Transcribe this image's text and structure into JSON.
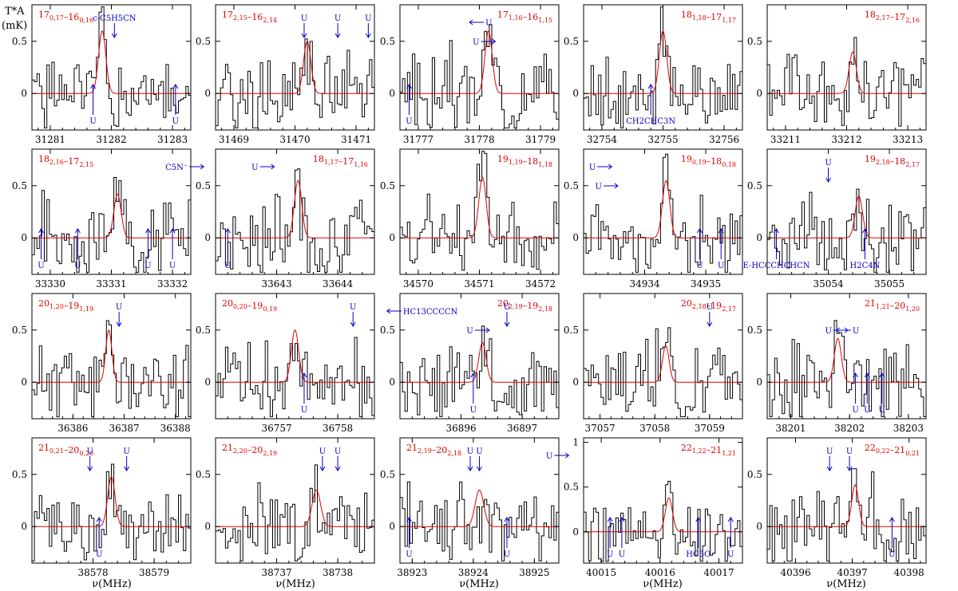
{
  "axis": {
    "xlabel": "ν(MHz)",
    "ylabel_top": "T*A",
    "ylabel_unit": "(mK)"
  },
  "chart_data": [
    {
      "type": "line",
      "title": "17_{0,17}–16_{0,16}",
      "xticks": [
        "31281",
        "31282",
        "31283"
      ],
      "xlim": [
        31280.7,
        31283.3
      ],
      "ylim": [
        -0.35,
        0.85
      ],
      "yticks": [
        0,
        0.5
      ],
      "model": {
        "center": 31281.85,
        "amp": 0.6,
        "width": 0.06
      },
      "noise_seed": 1,
      "annotations": [
        {
          "text": "c-C5H5CN",
          "x": 31282.05,
          "dir": "down",
          "place": "top"
        },
        {
          "text": "U",
          "x": 31281.7,
          "dir": "up",
          "place": "bottom"
        },
        {
          "text": "U",
          "x": 31283.05,
          "dir": "up",
          "place": "bottom"
        }
      ]
    },
    {
      "type": "line",
      "title": "17_{2,15}–16_{2,14}",
      "xticks": [
        "31469",
        "31470",
        "31471"
      ],
      "xlim": [
        31468.7,
        31471.3
      ],
      "ylim": [
        -0.35,
        0.85
      ],
      "yticks": [
        0,
        0.5
      ],
      "model": {
        "center": 31470.2,
        "amp": 0.5,
        "width": 0.06
      },
      "noise_seed": 2,
      "annotations": [
        {
          "text": "U",
          "x": 31470.15,
          "dir": "down",
          "place": "top"
        },
        {
          "text": "U",
          "x": 31470.7,
          "dir": "down",
          "place": "top"
        },
        {
          "text": "U",
          "x": 31471.2,
          "dir": "down",
          "place": "top"
        }
      ]
    },
    {
      "type": "line",
      "title": "17_{1,16}–16_{1,15}",
      "xticks": [
        "31777",
        "31778",
        "31779"
      ],
      "xlim": [
        31776.7,
        31779.3
      ],
      "ylim": [
        -0.35,
        0.85
      ],
      "yticks": [
        0,
        0.5
      ],
      "model": {
        "center": 31778.15,
        "amp": 0.6,
        "width": 0.06
      },
      "noise_seed": 3,
      "annotations": [
        {
          "text": "U",
          "x": 31776.85,
          "dir": "up",
          "place": "bottom"
        },
        {
          "text": "U",
          "x": 31778.1,
          "dir": "left",
          "place": "top"
        },
        {
          "text": "U",
          "x": 31778.0,
          "dir": "right",
          "place": "mid"
        }
      ]
    },
    {
      "type": "line",
      "title": "18_{1,18}–17_{1,17}",
      "xticks": [
        "32754",
        "32755",
        "32756"
      ],
      "xlim": [
        32753.7,
        32756.3
      ],
      "ylim": [
        -0.35,
        0.85
      ],
      "yticks": [
        0,
        0.5
      ],
      "model": {
        "center": 32755.0,
        "amp": 0.6,
        "width": 0.06
      },
      "noise_seed": 4,
      "annotations": [
        {
          "text": "CH2CHC3N",
          "x": 32754.8,
          "dir": "up",
          "place": "bottom"
        }
      ]
    },
    {
      "type": "line",
      "title": "18_{2,17}–17_{2,16}",
      "xticks": [
        "33211",
        "33212",
        "33213"
      ],
      "xlim": [
        33210.7,
        33213.3
      ],
      "ylim": [
        -0.35,
        0.85
      ],
      "yticks": [
        0,
        0.5
      ],
      "model": {
        "center": 33212.1,
        "amp": 0.4,
        "width": 0.06
      },
      "noise_seed": 5,
      "annotations": []
    },
    {
      "type": "line",
      "title": "18_{2,16}–17_{2,15}",
      "xticks": [
        "33330",
        "33331",
        "33332"
      ],
      "xlim": [
        33329.7,
        33332.3
      ],
      "ylim": [
        -0.35,
        0.85
      ],
      "yticks": [
        0,
        0.5
      ],
      "model": {
        "center": 33331.1,
        "amp": 0.42,
        "width": 0.06
      },
      "noise_seed": 6,
      "annotations": [
        {
          "text": "C5N⁻",
          "x": 33332.25,
          "dir": "right",
          "place": "top"
        },
        {
          "text": "U",
          "x": 33329.85,
          "dir": "up",
          "place": "bottom"
        },
        {
          "text": "U",
          "x": 33330.45,
          "dir": "up",
          "place": "bottom"
        },
        {
          "text": "U",
          "x": 33331.6,
          "dir": "up",
          "place": "bottom"
        },
        {
          "text": "U",
          "x": 33332.0,
          "dir": "up",
          "place": "bottom"
        }
      ]
    },
    {
      "type": "line",
      "title": "18_{1,17}–17_{1,16}",
      "xticks": [
        "",
        "33643",
        "33644"
      ],
      "xlim": [
        33642.0,
        33644.6
      ],
      "ylim": [
        -0.35,
        0.85
      ],
      "yticks": [
        0,
        0.5
      ],
      "model": {
        "center": 33643.35,
        "amp": 0.55,
        "width": 0.06
      },
      "noise_seed": 7,
      "annotations": [
        {
          "text": "U",
          "x": 33642.2,
          "dir": "up",
          "place": "bottom"
        },
        {
          "text": "U",
          "x": 33642.7,
          "dir": "right",
          "place": "top"
        }
      ]
    },
    {
      "type": "line",
      "title": "19_{1,19}–18_{1,18}",
      "xticks": [
        "34570",
        "34571",
        "34572"
      ],
      "xlim": [
        34569.7,
        34572.3
      ],
      "ylim": [
        -0.35,
        0.85
      ],
      "yticks": [
        0,
        0.5
      ],
      "model": {
        "center": 34571.05,
        "amp": 0.58,
        "width": 0.06
      },
      "noise_seed": 8,
      "annotations": []
    },
    {
      "type": "line",
      "title": "19_{0,19}–18_{0,18}",
      "xticks": [
        "",
        "34934",
        "34935"
      ],
      "xlim": [
        34933.0,
        34935.6
      ],
      "ylim": [
        -0.35,
        0.85
      ],
      "yticks": [
        0,
        0.5
      ],
      "model": {
        "center": 34934.35,
        "amp": 0.55,
        "width": 0.06
      },
      "noise_seed": 9,
      "annotations": [
        {
          "text": "U",
          "x": 34933.2,
          "dir": "right",
          "place": "top"
        },
        {
          "text": "U",
          "x": 34933.3,
          "dir": "right",
          "place": "mid"
        },
        {
          "text": "U",
          "x": 34934.9,
          "dir": "up",
          "place": "bottom"
        },
        {
          "text": "U",
          "x": 34935.25,
          "dir": "up",
          "place": "bottom"
        }
      ]
    },
    {
      "type": "line",
      "title": "19_{2,18}–18_{2,17}",
      "xticks": [
        "",
        "35054",
        "35055"
      ],
      "xlim": [
        35053.0,
        35055.6
      ],
      "ylim": [
        -0.35,
        0.85
      ],
      "yticks": [
        0,
        0.5
      ],
      "model": {
        "center": 35054.5,
        "amp": 0.4,
        "width": 0.06
      },
      "noise_seed": 10,
      "annotations": [
        {
          "text": "E-HCCCHCHCN",
          "x": 35053.15,
          "dir": "up",
          "place": "bottom"
        },
        {
          "text": "U",
          "x": 35054.0,
          "dir": "down",
          "place": "top"
        },
        {
          "text": "H2C4N",
          "x": 35054.6,
          "dir": "up",
          "place": "bottom"
        }
      ]
    },
    {
      "type": "line",
      "title": "20_{1,20}–19_{1,19}",
      "xticks": [
        "36386",
        "36387",
        "36388"
      ],
      "xlim": [
        36385.2,
        36388.3
      ],
      "ylim": [
        -0.35,
        0.85
      ],
      "yticks": [
        0,
        0.5
      ],
      "model": {
        "center": 36386.7,
        "amp": 0.5,
        "width": 0.06
      },
      "noise_seed": 11,
      "annotations": [
        {
          "text": "U",
          "x": 36386.9,
          "dir": "down",
          "place": "top"
        }
      ]
    },
    {
      "type": "line",
      "title": "20_{0,20}–19_{0,19}",
      "xticks": [
        "",
        "36757",
        "36758"
      ],
      "xlim": [
        36756.0,
        36758.6
      ],
      "ylim": [
        -0.35,
        0.85
      ],
      "yticks": [
        0,
        0.5
      ],
      "model": {
        "center": 36757.3,
        "amp": 0.5,
        "width": 0.06
      },
      "noise_seed": 12,
      "annotations": [
        {
          "text": "U",
          "x": 36757.45,
          "dir": "up",
          "place": "bottom"
        },
        {
          "text": "U",
          "x": 36758.25,
          "dir": "down",
          "place": "top"
        }
      ]
    },
    {
      "type": "line",
      "title": "20_{2,19}–19_{2,18}",
      "xticks": [
        "",
        "36896",
        "36897"
      ],
      "xlim": [
        36895.0,
        36897.6
      ],
      "ylim": [
        -0.35,
        0.85
      ],
      "yticks": [
        0,
        0.5
      ],
      "model": {
        "center": 36896.35,
        "amp": 0.38,
        "width": 0.06
      },
      "noise_seed": 13,
      "annotations": [
        {
          "text": "HC13CCCCN",
          "x": 36895.05,
          "dir": "left",
          "place": "top"
        },
        {
          "text": "U",
          "x": 36896.2,
          "dir": "right",
          "place": "mid"
        },
        {
          "text": "U",
          "x": 36896.2,
          "dir": "up",
          "place": "bottom"
        },
        {
          "text": "U",
          "x": 36896.75,
          "dir": "down",
          "place": "top"
        }
      ]
    },
    {
      "type": "line",
      "title": "20_{2,18}–19_{2,17}",
      "xticks": [
        "37057",
        "37058",
        "37059"
      ],
      "xlim": [
        37056.7,
        37059.6
      ],
      "ylim": [
        -0.35,
        0.85
      ],
      "yticks": [
        0,
        0.5
      ],
      "model": {
        "center": 37058.2,
        "amp": 0.35,
        "width": 0.06
      },
      "noise_seed": 14,
      "annotations": [
        {
          "text": "U",
          "x": 37059.0,
          "dir": "down",
          "place": "top"
        }
      ]
    },
    {
      "type": "line",
      "title": "21_{1,21}–20_{1,20}",
      "xticks": [
        "38201",
        "38202",
        "38203"
      ],
      "xlim": [
        38200.6,
        38203.3
      ],
      "ylim": [
        -0.35,
        0.85
      ],
      "yticks": [
        0,
        0.5
      ],
      "model": {
        "center": 38201.8,
        "amp": 0.42,
        "width": 0.06
      },
      "noise_seed": 15,
      "annotations": [
        {
          "text": "U",
          "x": 38201.7,
          "dir": "right",
          "place": "mid"
        },
        {
          "text": "U",
          "x": 38202.05,
          "dir": "left",
          "place": "mid"
        },
        {
          "text": "U",
          "x": 38202.1,
          "dir": "up",
          "place": "bottom"
        },
        {
          "text": "U",
          "x": 38202.3,
          "dir": "up",
          "place": "bottom"
        },
        {
          "text": "U",
          "x": 38202.55,
          "dir": "up",
          "place": "bottom"
        }
      ]
    },
    {
      "type": "line",
      "title": "21_{0,21}–20_{0,20}",
      "xticks": [
        "",
        "38578",
        "38579"
      ],
      "xlim": [
        38577.0,
        38579.6
      ],
      "ylim": [
        -0.35,
        0.85
      ],
      "yticks": [
        0,
        0.5
      ],
      "model": {
        "center": 38578.3,
        "amp": 0.48,
        "width": 0.06
      },
      "noise_seed": 16,
      "annotations": [
        {
          "text": "U",
          "x": 38577.95,
          "dir": "down",
          "place": "top"
        },
        {
          "text": "U",
          "x": 38578.55,
          "dir": "down",
          "place": "top"
        },
        {
          "text": "U",
          "x": 38578.1,
          "dir": "up",
          "place": "bottom"
        }
      ]
    },
    {
      "type": "line",
      "title": "21_{2,20}–20_{2,19}",
      "xticks": [
        "",
        "38737",
        "38738"
      ],
      "xlim": [
        38736.0,
        38738.6
      ],
      "ylim": [
        -0.35,
        0.85
      ],
      "yticks": [
        0,
        0.5
      ],
      "model": {
        "center": 38737.65,
        "amp": 0.35,
        "width": 0.07
      },
      "noise_seed": 17,
      "annotations": [
        {
          "text": "U",
          "x": 38737.75,
          "dir": "down",
          "place": "top"
        },
        {
          "text": "U",
          "x": 38738.0,
          "dir": "down",
          "place": "top"
        }
      ]
    },
    {
      "type": "line",
      "title": "21_{2,19}–20_{2,18}",
      "xticks": [
        "38923",
        "38924",
        "38925"
      ],
      "xlim": [
        38922.8,
        38925.4
      ],
      "ylim": [
        -0.35,
        0.85
      ],
      "yticks": [
        0,
        0.5
      ],
      "model": {
        "center": 38924.1,
        "amp": 0.35,
        "width": 0.07
      },
      "noise_seed": 18,
      "annotations": [
        {
          "text": "U",
          "x": 38922.95,
          "dir": "up",
          "place": "bottom"
        },
        {
          "text": "U",
          "x": 38923.95,
          "dir": "down",
          "place": "top"
        },
        {
          "text": "U",
          "x": 38924.1,
          "dir": "down",
          "place": "top"
        },
        {
          "text": "U",
          "x": 38924.55,
          "dir": "up",
          "place": "bottom"
        },
        {
          "text": "U",
          "x": 38925.3,
          "dir": "right",
          "place": "top"
        }
      ]
    },
    {
      "type": "line",
      "title": "22_{1,22}–21_{1,21}",
      "xticks": [
        "40015",
        "40016",
        "40017"
      ],
      "xlim": [
        40014.7,
        40017.4
      ],
      "ylim": [
        -0.35,
        1.05
      ],
      "yticks": [
        0,
        0.5,
        1
      ],
      "model": {
        "center": 40016.15,
        "amp": 0.38,
        "width": 0.06
      },
      "noise_seed": 19,
      "annotations": [
        {
          "text": "U",
          "x": 40015.15,
          "dir": "up",
          "place": "bottom"
        },
        {
          "text": "U",
          "x": 40015.35,
          "dir": "up",
          "place": "bottom"
        },
        {
          "text": "HC5O",
          "x": 40016.65,
          "dir": "up",
          "place": "bottom"
        },
        {
          "text": "U",
          "x": 40017.2,
          "dir": "up",
          "place": "bottom"
        }
      ]
    },
    {
      "type": "line",
      "title": "22_{0,22}–21_{0,21}",
      "xticks": [
        "40396",
        "40397",
        "40398"
      ],
      "xlim": [
        40395.5,
        40398.3
      ],
      "ylim": [
        -0.35,
        0.85
      ],
      "yticks": [
        0,
        0.5
      ],
      "model": {
        "center": 40397.05,
        "amp": 0.4,
        "width": 0.06
      },
      "noise_seed": 20,
      "annotations": [
        {
          "text": "U",
          "x": 40396.6,
          "dir": "down",
          "place": "top"
        },
        {
          "text": "U",
          "x": 40396.95,
          "dir": "down",
          "place": "top"
        },
        {
          "text": "U",
          "x": 40397.7,
          "dir": "up",
          "place": "bottom"
        }
      ]
    }
  ],
  "colors": {
    "observed": "#000000",
    "model": "#e00000",
    "annotation": "#0000cc",
    "label": "#e00000"
  }
}
